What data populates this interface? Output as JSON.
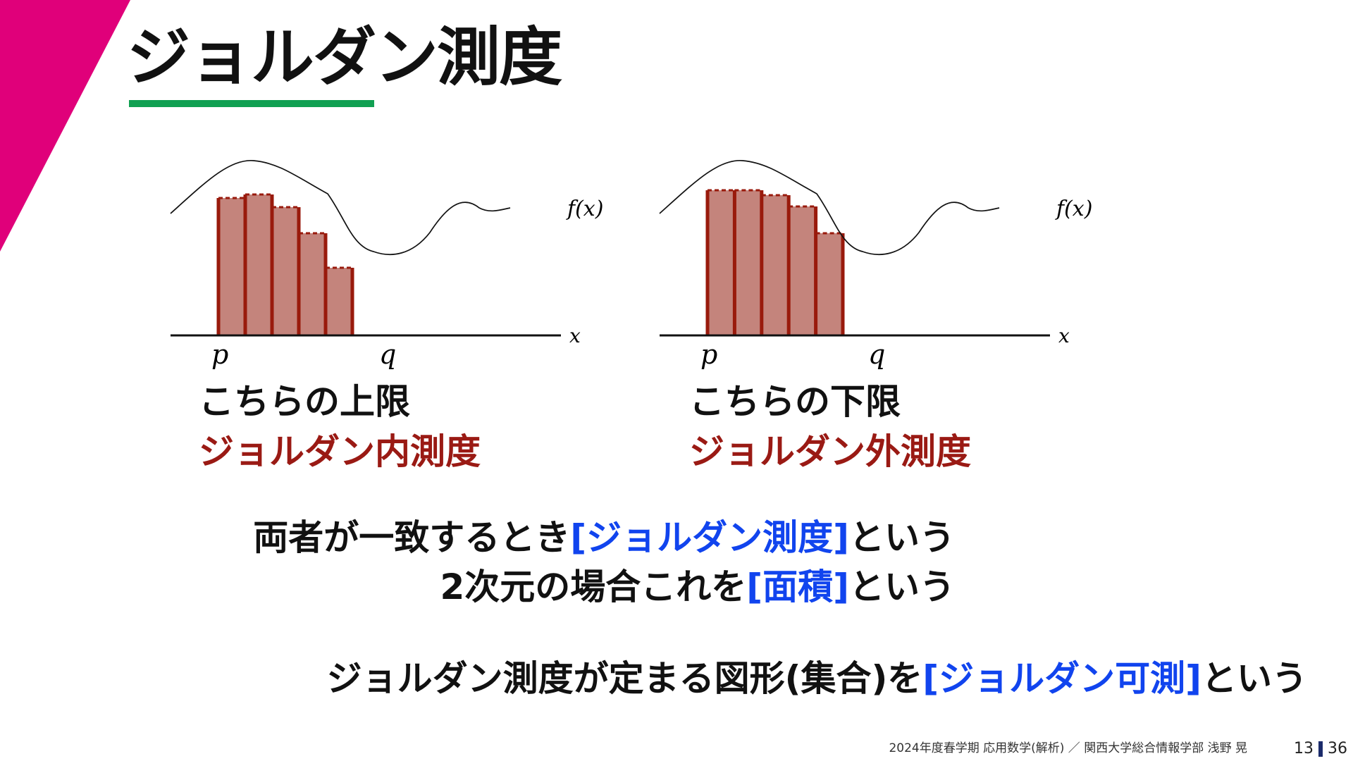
{
  "title": "ジョルダン測度",
  "colors": {
    "accent_corner": "#e0007a",
    "title_underline": "#11a052",
    "bar_fill": "#c4847c",
    "bar_edge": "#991a0c",
    "emphasis_dark_red": "#9a1a14",
    "term_blue": "#1144ee"
  },
  "figures": {
    "left": {
      "func_label": "f(x)",
      "x_label": "x",
      "p_label": "p",
      "q_label": "q",
      "rectangles": "inscribed"
    },
    "right": {
      "func_label": "f(x)",
      "x_label": "x",
      "p_label": "p",
      "q_label": "q",
      "rectangles": "circumscribed"
    }
  },
  "captions": {
    "left": {
      "line1": "こちらの上限",
      "line2": "ジョルダン内測度"
    },
    "right": {
      "line1": "こちらの下限",
      "line2": "ジョルダン外測度"
    }
  },
  "statements": [
    {
      "before": "両者が一致するとき",
      "term": "[ジョルダン測度]",
      "after": "という"
    },
    {
      "before": "2次元の場合これを",
      "term": "[面積]",
      "after": "という"
    },
    {
      "before": "ジョルダン測度が定まる図形(集合)を",
      "term": "[ジョルダン可測]",
      "after": "という"
    }
  ],
  "footer": {
    "text": "2024年度春学期 応用数学(解析) ／ 関西大学総合情報学部 浅野 晃",
    "page": "13",
    "total": "36"
  }
}
